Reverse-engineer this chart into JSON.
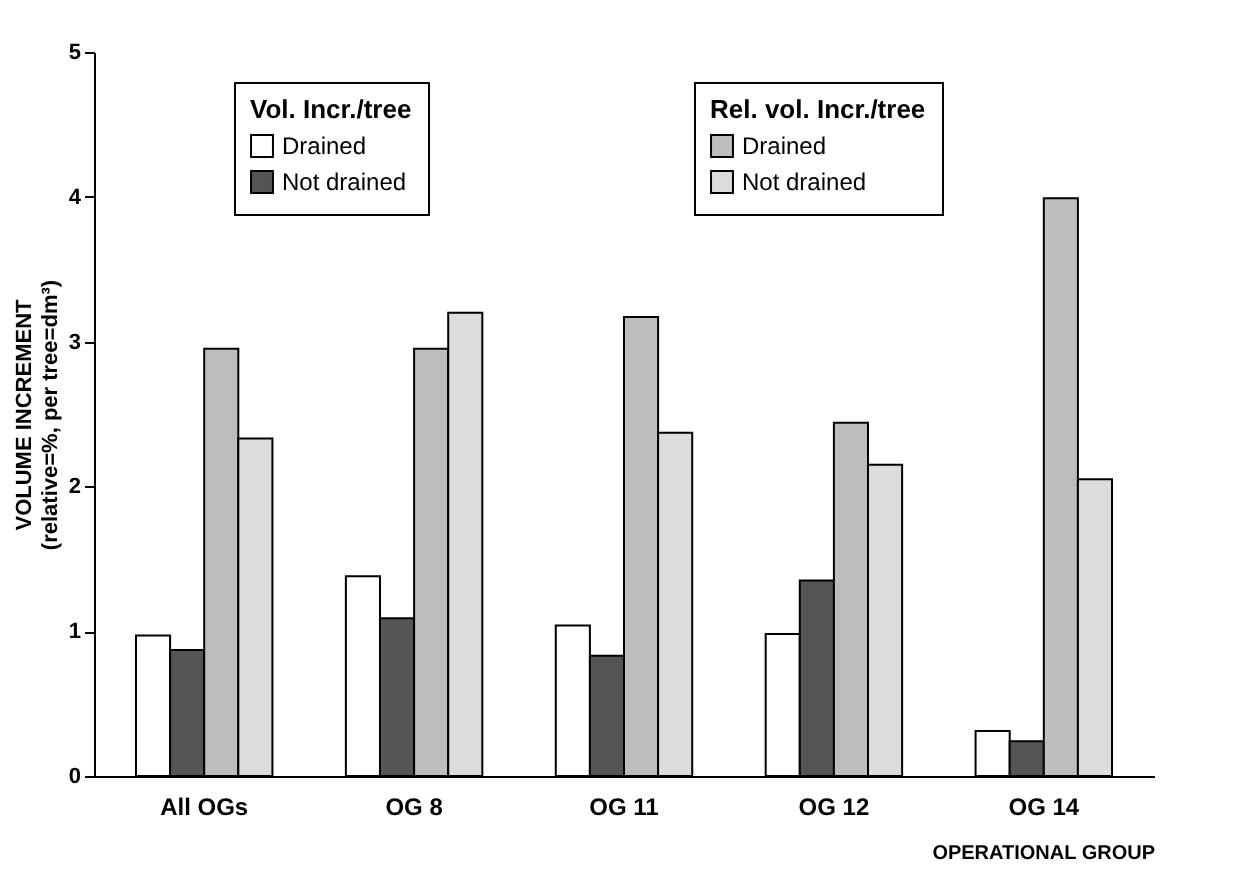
{
  "chart_data": {
    "type": "bar",
    "xlabel": "OPERATIONAL GROUP",
    "ylabel": "VOLUME INCREMENT\n(relative=%, per tree=dm³)",
    "categories": [
      "All OGs",
      "OG 8",
      "OG 11",
      "OG 12",
      "OG 14"
    ],
    "series": [
      {
        "name": "Drained",
        "color": "#ffffff",
        "values": [
          0.97,
          1.38,
          1.04,
          0.98,
          0.31
        ]
      },
      {
        "name": "Not drained",
        "color": "#555555",
        "values": [
          0.87,
          1.09,
          0.83,
          1.35,
          0.24
        ]
      },
      {
        "name": "Drained",
        "color": "#bdbdbd",
        "values": [
          2.95,
          2.95,
          3.17,
          2.44,
          3.99
        ]
      },
      {
        "name": "Not drained",
        "color": "#dcdcdc",
        "values": [
          2.33,
          3.2,
          2.37,
          2.15,
          2.05
        ]
      }
    ],
    "annotations": [
      "Vol. Incr./tree",
      "Rel. vol. Incr./tree"
    ],
    "ylim": [
      0,
      5
    ],
    "yticks": [
      0,
      1,
      2,
      3,
      4,
      5
    ],
    "legend": "top"
  }
}
